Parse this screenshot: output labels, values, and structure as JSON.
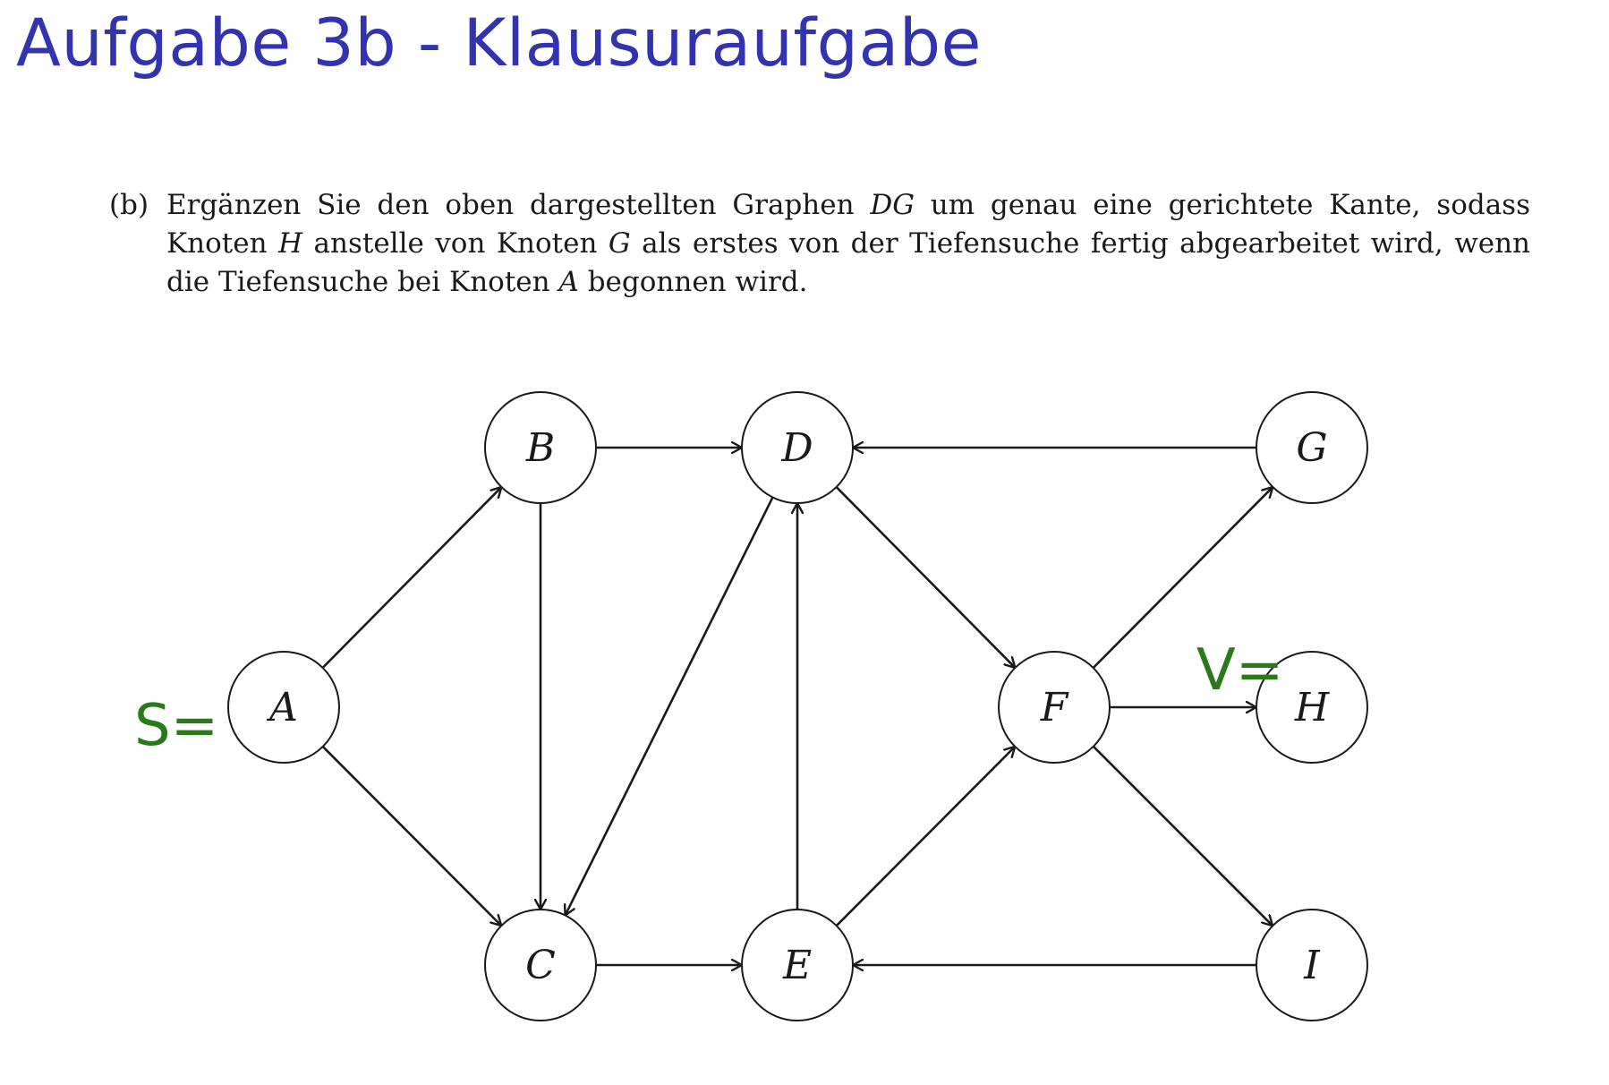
{
  "title": "Aufgabe 3b - Klausuraufgabe",
  "task": {
    "label": "(b)",
    "parts": [
      {
        "text": "Ergänzen Sie den oben dargestellten Graphen ",
        "italic": false
      },
      {
        "text": "DG",
        "italic": true
      },
      {
        "text": " um genau eine gerichtete Kante, sodass Knoten ",
        "italic": false
      },
      {
        "text": "H",
        "italic": true
      },
      {
        "text": " anstelle von Knoten ",
        "italic": false
      },
      {
        "text": "G",
        "italic": true
      },
      {
        "text": " als erstes von der Tiefensuche fertig abgearbeitet wird, wenn die Tiefensuche bei Knoten ",
        "italic": false
      },
      {
        "text": "A",
        "italic": true
      },
      {
        "text": " begonnen wird.",
        "italic": false
      }
    ]
  },
  "graph": {
    "nodes": [
      "A",
      "B",
      "C",
      "D",
      "E",
      "F",
      "G",
      "H",
      "I"
    ],
    "edges": [
      [
        "A",
        "B"
      ],
      [
        "A",
        "C"
      ],
      [
        "B",
        "D"
      ],
      [
        "B",
        "C"
      ],
      [
        "D",
        "C"
      ],
      [
        "D",
        "F"
      ],
      [
        "G",
        "D"
      ],
      [
        "E",
        "D"
      ],
      [
        "C",
        "E"
      ],
      [
        "E",
        "F"
      ],
      [
        "F",
        "G"
      ],
      [
        "F",
        "H"
      ],
      [
        "F",
        "I"
      ],
      [
        "I",
        "E"
      ]
    ]
  },
  "annotations": {
    "start": "S=",
    "target": "V="
  },
  "colors": {
    "title": "#3333b2",
    "ink": "#1a1a1a",
    "handwriting": "#2a7a1a"
  }
}
